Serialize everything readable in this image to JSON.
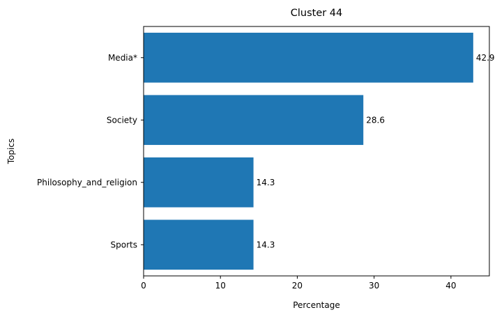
{
  "chart_data": {
    "type": "bar",
    "orientation": "horizontal",
    "title": "Cluster 44",
    "xlabel": "Percentage",
    "ylabel": "Topics",
    "categories": [
      "Media*",
      "Society",
      "Philosophy_and_religion",
      "Sports"
    ],
    "values": [
      42.9,
      28.6,
      14.3,
      14.3
    ],
    "value_labels": [
      "42.9",
      "28.6",
      "14.3",
      "14.3"
    ],
    "xlim": [
      0,
      45
    ],
    "xticks": [
      0,
      10,
      20,
      30,
      40
    ],
    "grid": false,
    "bar_color": "#1f77b4"
  }
}
